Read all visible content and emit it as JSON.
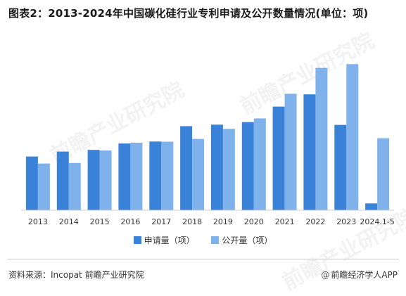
{
  "title": "图表2：2013-2024年中国碳化硅行业专利申请及公开数量情况(单位：项)",
  "source": "资料来源：Incopat 前瞻产业研究院",
  "brand": "前瞻经济学人APP",
  "brand_icon": "at-icon",
  "watermark": "前瞻产业研究院",
  "colors": {
    "apply": "#3a82d8",
    "publish": "#7fb2ea"
  },
  "chart_data": {
    "type": "bar",
    "title": "图表2：2013-2024年中国碳化硅行业专利申请及公开数量情况(单位：项)",
    "categories": [
      "2013",
      "2014",
      "2015",
      "2016",
      "2017",
      "2018",
      "2019",
      "2020",
      "2021",
      "2022",
      "2023",
      "2024.1-5"
    ],
    "series": [
      {
        "name": "申请量（项）",
        "values": [
          745,
          813,
          836,
          925,
          952,
          1166,
          1186,
          1221,
          1437,
          1607,
          1183,
          95
        ]
      },
      {
        "name": "公开量（项）",
        "values": [
          647,
          655,
          828,
          936,
          950,
          988,
          1128,
          1273,
          1614,
          1973,
          2026,
          998
        ]
      }
    ],
    "xlabel": "",
    "ylabel": "",
    "ylim": [
      0,
      2150
    ],
    "grid": false,
    "legend_position": "bottom-center"
  }
}
